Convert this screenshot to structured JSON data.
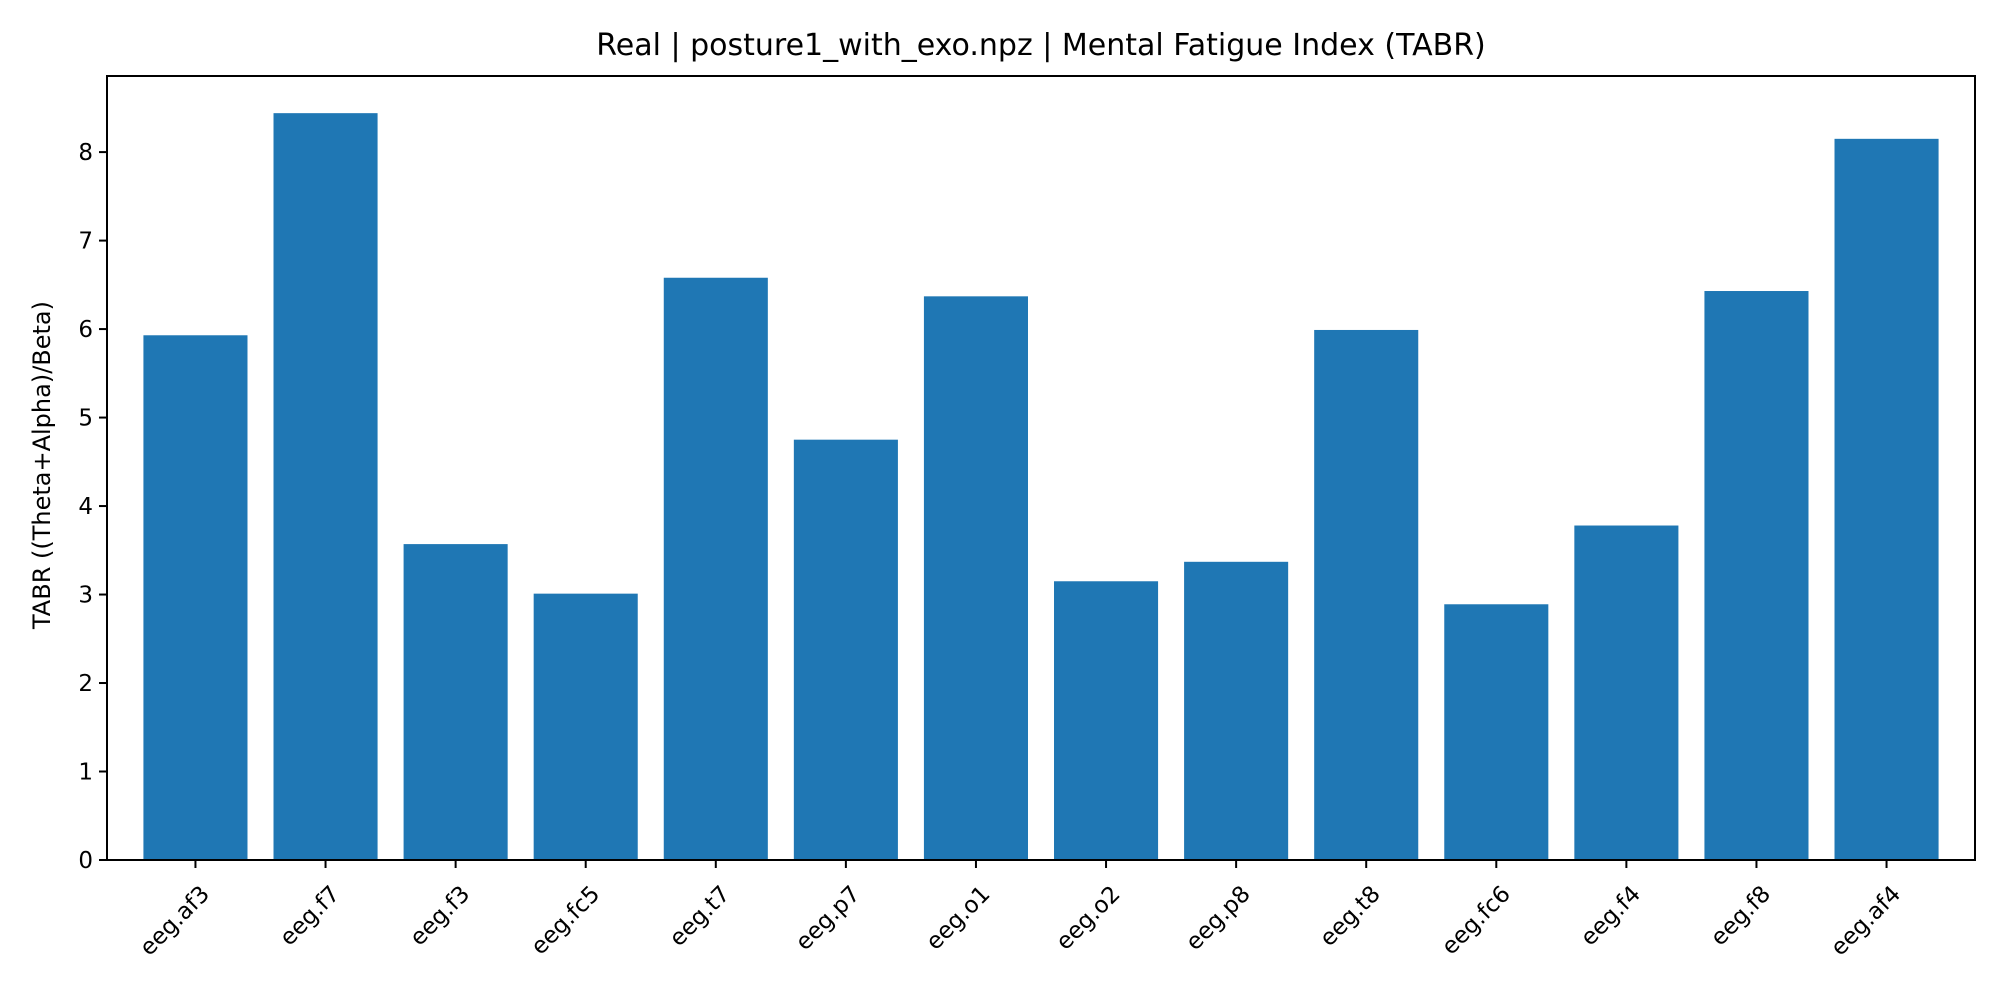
{
  "chart_data": {
    "type": "bar",
    "title": "Real | posture1_with_exo.npz | Mental Fatigue Index (TABR)",
    "xlabel": "",
    "ylabel": "TABR ((Theta+Alpha)/Beta)",
    "categories": [
      "eeg.af3",
      "eeg.f7",
      "eeg.f3",
      "eeg.fc5",
      "eeg.t7",
      "eeg.p7",
      "eeg.o1",
      "eeg.o2",
      "eeg.p8",
      "eeg.t8",
      "eeg.fc6",
      "eeg.f4",
      "eeg.f8",
      "eeg.af4"
    ],
    "values": [
      5.93,
      8.44,
      3.57,
      3.01,
      6.58,
      4.75,
      6.37,
      3.15,
      3.37,
      5.99,
      2.89,
      3.78,
      6.43,
      8.15
    ],
    "ylim": [
      0,
      8.86
    ],
    "yticks": [
      0,
      1,
      2,
      3,
      4,
      5,
      6,
      7,
      8
    ],
    "grid": false,
    "legend": "none",
    "bar_color": "#1f77b4"
  }
}
